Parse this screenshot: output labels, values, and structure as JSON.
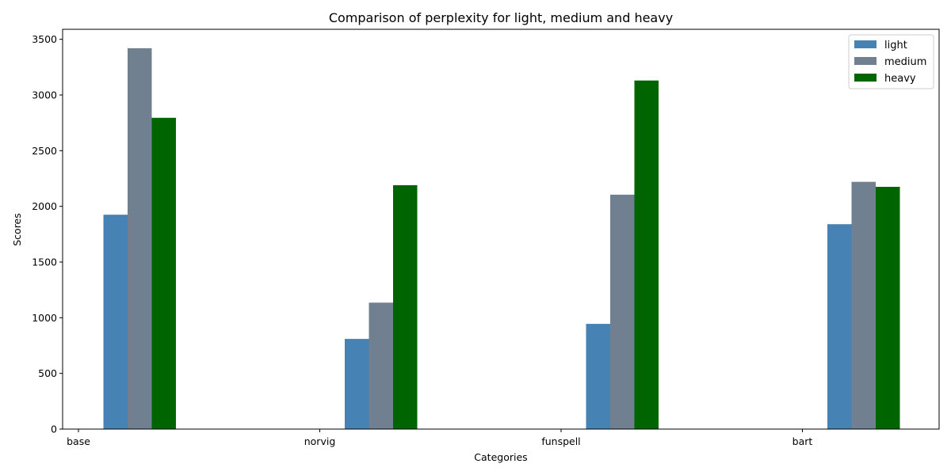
{
  "chart_data": {
    "type": "bar",
    "title": "Comparison of perplexity for light, medium and heavy",
    "xlabel": "Categories",
    "ylabel": "Scores",
    "categories": [
      "base",
      "norvig",
      "funspell",
      "bart"
    ],
    "series": [
      {
        "name": "light",
        "color": "#4682b4",
        "values": [
          1925,
          810,
          945,
          1840
        ]
      },
      {
        "name": "medium",
        "color": "#708090",
        "values": [
          3420,
          1135,
          2105,
          2220
        ]
      },
      {
        "name": "heavy",
        "color": "#006400",
        "values": [
          2795,
          2190,
          3130,
          2175
        ]
      }
    ],
    "ylim": [
      0,
      3590
    ],
    "yticks": [
      0,
      500,
      1000,
      1500,
      2000,
      2500,
      3000,
      3500
    ],
    "grid": false,
    "legend_position": "top-right"
  }
}
